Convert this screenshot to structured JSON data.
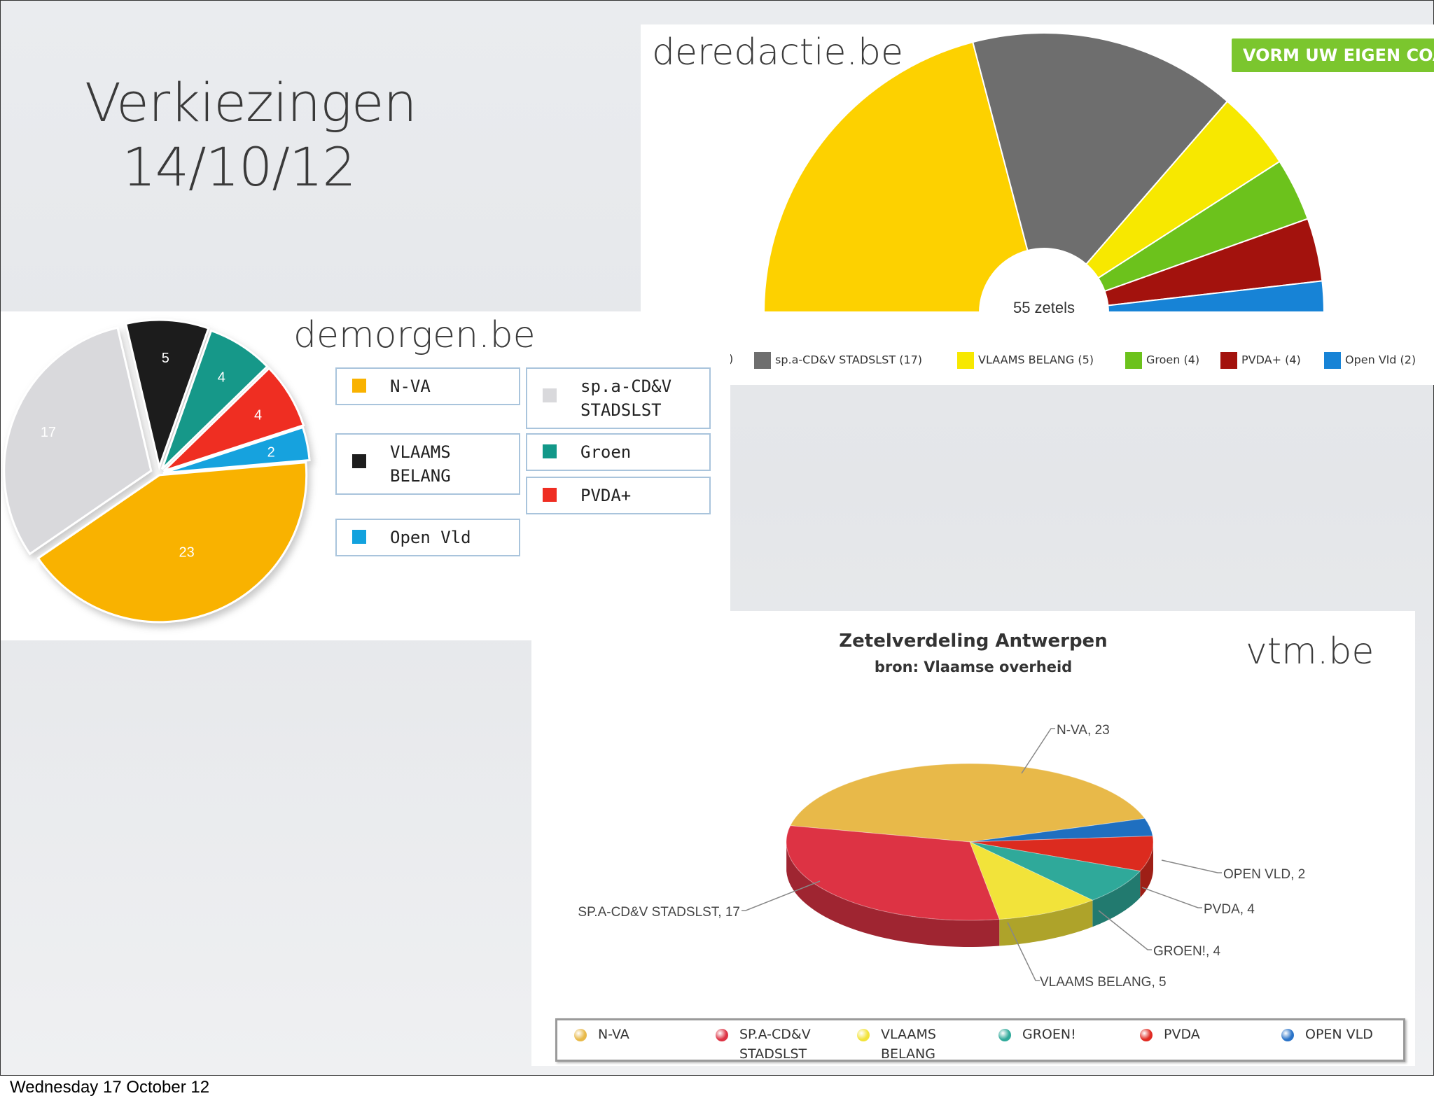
{
  "slide": {
    "title_line1": "Verkiezingen",
    "title_line2": "14/10/12",
    "footer": "Wednesday 17 October 12"
  },
  "deredactie": {
    "site": "deredactie.be",
    "cta": "VORM UW EIGEN COA",
    "center_label": "55 zetels",
    "legend": [
      {
        "label": ")",
        "color": ""
      },
      {
        "label": "sp.a-CD&V STADSLST (17)",
        "color": "#6e6e6e"
      },
      {
        "label": "VLAAMS BELANG (5)",
        "color": "#f7e800"
      },
      {
        "label": "Groen (4)",
        "color": "#6cc21c"
      },
      {
        "label": "PVDA+ (4)",
        "color": "#a3120d"
      },
      {
        "label": "Open Vld (2)",
        "color": "#1783d6"
      }
    ]
  },
  "demorgen": {
    "site": "demorgen.be",
    "legend": [
      {
        "label": "N-VA",
        "color": "#f9b200"
      },
      {
        "label": "sp.a-CD&V\nSTADSLST",
        "color": "#d9d9dc"
      },
      {
        "label": "VLAAMS\nBELANG",
        "color": "#1d1d1d"
      },
      {
        "label": "Groen",
        "color": "#129889"
      },
      {
        "label": "PVDA+",
        "color": "#ef2d22"
      },
      {
        "label": "Open Vld",
        "color": "#12a2de"
      }
    ]
  },
  "vtm": {
    "site": "vtm.be",
    "title": "Zetelverdeling Antwerpen",
    "subtitle": "bron: Vlaamse overheid",
    "legend": [
      {
        "label": "N-VA",
        "color": "#e8b949"
      },
      {
        "label": "SP.A-CD&V\nSTADSLST",
        "color": "#dd3344"
      },
      {
        "label": "VLAAMS\nBELANG",
        "color": "#f2e33a"
      },
      {
        "label": "GROEN!",
        "color": "#2fa99a"
      },
      {
        "label": "PVDA",
        "color": "#e02a22"
      },
      {
        "label": "OPEN VLD",
        "color": "#2a73c8"
      }
    ]
  },
  "chart_data": [
    {
      "type": "pie",
      "source": "deredactie.be",
      "variant": "half-donut",
      "center_label": "55 zetels",
      "categories": [
        "N-VA",
        "sp.a-CD&V STADSLST",
        "VLAAMS BELANG",
        "Groen",
        "PVDA+",
        "Open Vld"
      ],
      "values": [
        23,
        17,
        5,
        4,
        4,
        2
      ],
      "colors": [
        "#fdd100",
        "#6e6e6e",
        "#f7e800",
        "#6cc21c",
        "#a3120d",
        "#1783d6"
      ]
    },
    {
      "type": "pie",
      "source": "demorgen.be",
      "categories": [
        "N-VA",
        "sp.a-CD&V STADSLST",
        "VLAAMS BELANG",
        "Groen",
        "PVDA+",
        "Open Vld"
      ],
      "values": [
        23,
        17,
        5,
        4,
        4,
        2
      ],
      "data_labels": [
        "23",
        "17",
        "5",
        "4",
        "4",
        "2"
      ],
      "colors": [
        "#f9b200",
        "#d9d9dc",
        "#1d1d1d",
        "#129889",
        "#ef2d22",
        "#12a2de"
      ]
    },
    {
      "type": "pie",
      "source": "vtm.be",
      "variant": "3d",
      "title": "Zetelverdeling Antwerpen",
      "subtitle": "bron: Vlaamse overheid",
      "categories": [
        "N-VA",
        "OPEN VLD",
        "PVDA",
        "GROEN!",
        "VLAAMS BELANG",
        "SP.A-CD&V STADSLST"
      ],
      "values": [
        23,
        2,
        4,
        4,
        5,
        17
      ],
      "data_labels": [
        "N-VA, 23",
        "OPEN VLD, 2",
        "PVDA, 4",
        "GROEN!, 4",
        "VLAAMS BELANG, 5",
        "SP.A-CD&V STADSLST, 17"
      ],
      "colors": [
        "#e8b949",
        "#1f6fc0",
        "#dc2b1f",
        "#2fa99a",
        "#f2e33a",
        "#dd3344"
      ]
    }
  ]
}
